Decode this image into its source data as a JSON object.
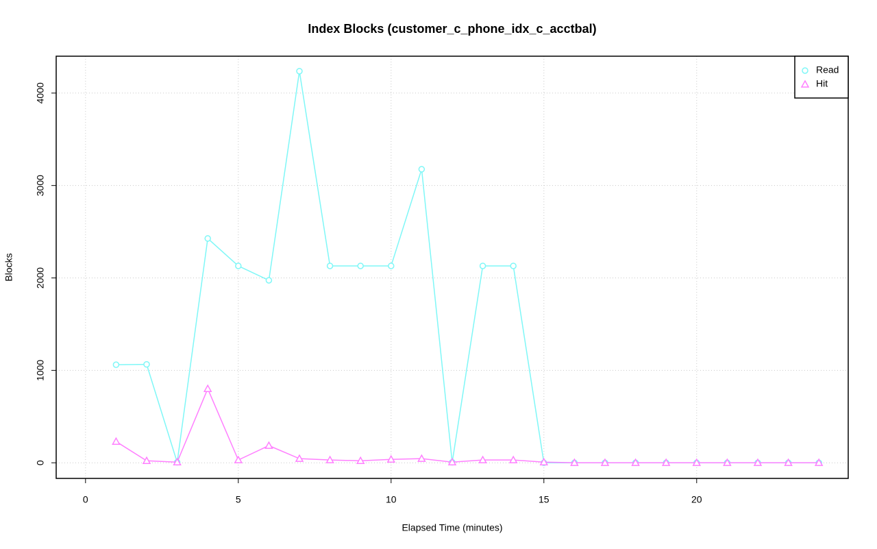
{
  "chart_data": {
    "type": "line",
    "title": "Index Blocks (customer_c_phone_idx_c_acctbal)",
    "x_label": "Elapsed Time (minutes)",
    "y_label": "Blocks",
    "x": [
      1,
      2,
      3,
      4,
      5,
      6,
      7,
      8,
      9,
      10,
      11,
      12,
      13,
      14,
      15,
      16,
      17,
      18,
      19,
      20,
      21,
      22,
      23,
      24
    ],
    "series": [
      {
        "name": "Read",
        "color": "#7ff7f7",
        "marker": "circle",
        "values": [
          1061,
          1065,
          5,
          2427,
          2130,
          1974,
          4237,
          2130,
          2130,
          2130,
          3176,
          5,
          2130,
          2130,
          0,
          0,
          0,
          0,
          0,
          0,
          0,
          0,
          0,
          0
        ]
      },
      {
        "name": "Hit",
        "color": "#ff7fff",
        "marker": "triangle",
        "values": [
          230,
          22,
          7,
          801,
          30,
          186,
          45,
          30,
          22,
          37,
          45,
          7,
          30,
          30,
          7,
          1,
          1,
          1,
          1,
          1,
          1,
          1,
          1,
          1
        ]
      }
    ],
    "xlim": [
      -0.96,
      24.96
    ],
    "xticks": [
      0,
      5,
      10,
      15,
      20
    ],
    "ylim": [
      -169,
      4399
    ],
    "yticks": [
      0,
      1000,
      2000,
      3000,
      4000
    ],
    "grid": true,
    "legend": "top-right"
  }
}
